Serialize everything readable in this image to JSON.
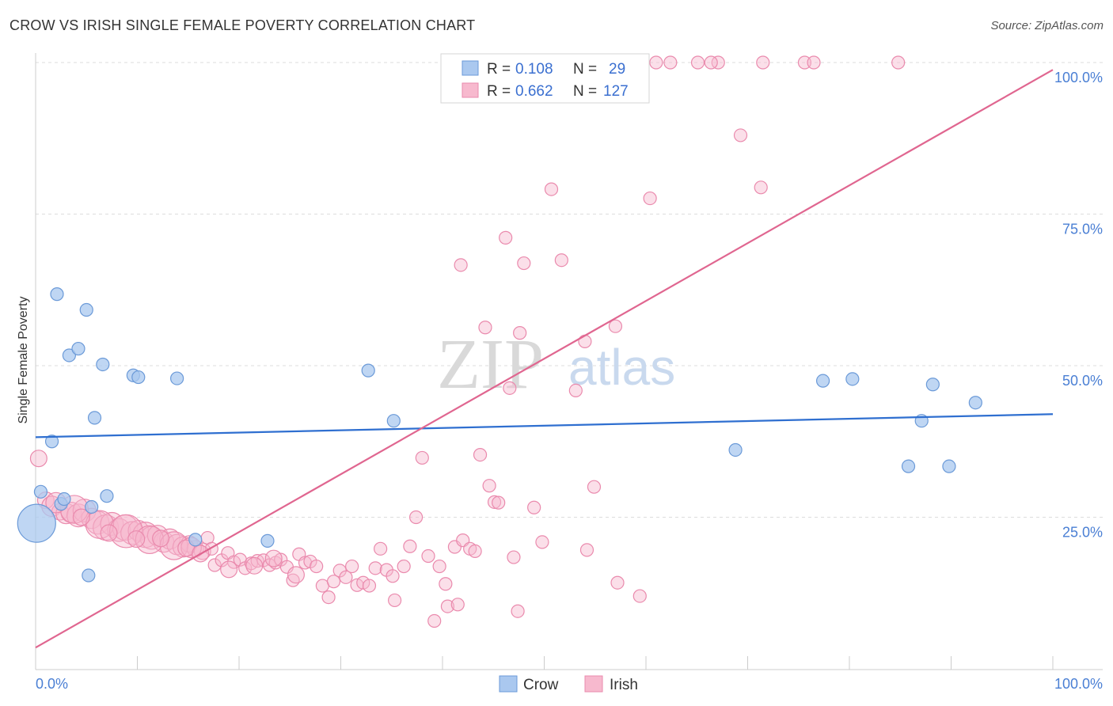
{
  "title": "CROW VS IRISH SINGLE FEMALE POVERTY CORRELATION CHART",
  "source": "Source: ZipAtlas.com",
  "watermark": {
    "zip": "ZIP",
    "atlas": "atlas"
  },
  "colors": {
    "crow_fill": "#aac8ef",
    "crow_stroke": "#6b9ad8",
    "crow_line": "#2f6fd0",
    "irish_fill": "#f7b9ce",
    "irish_stroke": "#ea8aad",
    "irish_line": "#e06690",
    "tick": "#4a7fd4",
    "grid": "#dddddd"
  },
  "chart_data": {
    "type": "scatter",
    "title": "CROW VS IRISH SINGLE FEMALE POVERTY CORRELATION CHART",
    "xlabel": "",
    "ylabel": "Single Female Poverty",
    "xlim": [
      0,
      100
    ],
    "ylim": [
      0,
      100
    ],
    "x_tick_labels": [
      "0.0%",
      "100.0%"
    ],
    "y_tick_labels": [
      "25.0%",
      "50.0%",
      "75.0%",
      "100.0%"
    ],
    "y_ticks": [
      25,
      50,
      75,
      100
    ],
    "grid": true,
    "legend_position": "top-center",
    "legend": [
      {
        "name": "Crow",
        "r_label": "R =",
        "r": "0.108",
        "n_label": "N =",
        "n": "29"
      },
      {
        "name": "Irish",
        "r_label": "R =",
        "r": "0.662",
        "n_label": "N =",
        "n": "127"
      }
    ],
    "series": [
      {
        "name": "Crow",
        "trend": {
          "x": [
            0,
            100
          ],
          "y": [
            38.2,
            42.0
          ]
        },
        "points": [
          [
            0.1,
            24.0,
            3
          ],
          [
            0.5,
            29.2,
            1
          ],
          [
            1.6,
            37.5,
            1
          ],
          [
            2.1,
            61.8,
            1
          ],
          [
            2.5,
            27.2,
            1
          ],
          [
            2.8,
            28.0,
            1
          ],
          [
            3.3,
            51.7,
            1
          ],
          [
            4.2,
            52.8,
            1
          ],
          [
            5.0,
            59.2,
            1
          ],
          [
            5.2,
            15.4,
            1
          ],
          [
            5.8,
            41.4,
            1
          ],
          [
            6.6,
            50.2,
            1
          ],
          [
            7.0,
            28.5,
            1
          ],
          [
            9.6,
            48.4,
            1
          ],
          [
            10.1,
            48.1,
            1
          ],
          [
            13.9,
            47.9,
            1
          ],
          [
            15.7,
            21.3,
            1
          ],
          [
            22.8,
            21.1,
            1
          ],
          [
            32.7,
            49.2,
            1
          ],
          [
            35.2,
            40.9,
            1
          ],
          [
            68.8,
            36.1,
            1
          ],
          [
            77.4,
            47.5,
            1
          ],
          [
            80.3,
            47.8,
            1
          ],
          [
            85.8,
            33.4,
            1
          ],
          [
            87.1,
            40.9,
            1
          ],
          [
            88.2,
            46.9,
            1
          ],
          [
            89.8,
            33.4,
            1
          ],
          [
            92.4,
            43.9,
            1
          ],
          [
            5.5,
            26.7,
            1
          ]
        ]
      },
      {
        "name": "Irish",
        "trend": {
          "x": [
            0,
            100
          ],
          "y": [
            3.5,
            98.8
          ]
        },
        "points": [
          [
            0.3,
            34.7,
            1.3
          ],
          [
            1.0,
            27.8,
            1.3
          ],
          [
            1.6,
            26.8,
            1.6
          ],
          [
            2.4,
            25.9,
            1.3
          ],
          [
            3.0,
            25.6,
            1.6
          ],
          [
            3.5,
            25.8,
            1.6
          ],
          [
            4.2,
            25.3,
            1.8
          ],
          [
            4.8,
            26.1,
            1.8
          ],
          [
            5.5,
            24.8,
            1.6
          ],
          [
            6.1,
            24.1,
            1.8
          ],
          [
            6.9,
            23.3,
            2
          ],
          [
            7.5,
            23.9,
            1.8
          ],
          [
            8.2,
            22.9,
            1.8
          ],
          [
            8.8,
            23.3,
            2
          ],
          [
            9.5,
            22.4,
            1.8
          ],
          [
            10.1,
            22.8,
            1.6
          ],
          [
            10.8,
            22.1,
            2
          ],
          [
            11.4,
            21.6,
            1.8
          ],
          [
            12.0,
            22.0,
            1.6
          ],
          [
            12.6,
            20.9,
            1.6
          ],
          [
            13.2,
            21.4,
            1.6
          ],
          [
            13.9,
            20.5,
            1.6
          ],
          [
            14.5,
            20.1,
            1.6
          ],
          [
            15.1,
            20.6,
            1.3
          ],
          [
            15.7,
            19.8,
            1.3
          ],
          [
            16.4,
            19.4,
            1.3
          ],
          [
            16.9,
            21.6,
            1
          ],
          [
            17.3,
            19.8,
            1
          ],
          [
            17.6,
            17.1,
            1
          ],
          [
            18.3,
            17.9,
            1
          ],
          [
            18.9,
            19.1,
            1
          ],
          [
            19.5,
            17.6,
            1
          ],
          [
            20.1,
            18.0,
            1
          ],
          [
            20.6,
            16.6,
            1
          ],
          [
            21.2,
            17.4,
            1
          ],
          [
            21.8,
            17.8,
            1
          ],
          [
            22.4,
            17.9,
            1
          ],
          [
            23.0,
            17.1,
            1
          ],
          [
            23.6,
            17.5,
            1
          ],
          [
            24.1,
            18.0,
            1
          ],
          [
            24.7,
            16.8,
            1
          ],
          [
            25.3,
            14.6,
            1
          ],
          [
            25.9,
            18.9,
            1
          ],
          [
            26.5,
            17.5,
            1
          ],
          [
            27.0,
            17.7,
            1
          ],
          [
            27.6,
            16.9,
            1
          ],
          [
            28.2,
            13.7,
            1
          ],
          [
            28.8,
            11.8,
            1
          ],
          [
            29.3,
            14.4,
            1
          ],
          [
            29.9,
            16.2,
            1
          ],
          [
            30.5,
            15.1,
            1
          ],
          [
            31.1,
            16.9,
            1
          ],
          [
            31.6,
            13.8,
            1
          ],
          [
            32.2,
            14.2,
            1
          ],
          [
            32.8,
            13.7,
            1
          ],
          [
            33.4,
            16.6,
            1
          ],
          [
            33.9,
            19.8,
            1
          ],
          [
            34.5,
            16.3,
            1
          ],
          [
            35.1,
            15.3,
            1
          ],
          [
            35.3,
            11.3,
            1
          ],
          [
            36.2,
            16.9,
            1
          ],
          [
            36.8,
            20.2,
            1
          ],
          [
            37.4,
            25.0,
            1
          ],
          [
            38.0,
            34.8,
            1
          ],
          [
            38.6,
            18.6,
            1
          ],
          [
            39.2,
            7.9,
            1
          ],
          [
            39.7,
            16.9,
            1
          ],
          [
            40.3,
            14.0,
            1
          ],
          [
            40.5,
            10.3,
            1
          ],
          [
            41.2,
            20.1,
            1
          ],
          [
            41.5,
            10.6,
            1
          ],
          [
            42.0,
            21.2,
            1
          ],
          [
            42.7,
            19.8,
            1
          ],
          [
            43.2,
            19.4,
            1
          ],
          [
            43.7,
            35.3,
            1
          ],
          [
            44.2,
            56.3,
            1
          ],
          [
            44.6,
            30.2,
            1
          ],
          [
            45.1,
            27.5,
            1
          ],
          [
            45.5,
            27.4,
            1
          ],
          [
            46.2,
            71.1,
            1
          ],
          [
            46.6,
            46.3,
            1
          ],
          [
            47.0,
            18.4,
            1
          ],
          [
            47.4,
            9.5,
            1
          ],
          [
            48.0,
            66.9,
            1
          ],
          [
            49.0,
            26.6,
            1
          ],
          [
            49.8,
            20.9,
            1
          ],
          [
            50.7,
            79.1,
            1
          ],
          [
            51.7,
            67.4,
            1
          ],
          [
            53.1,
            45.9,
            1
          ],
          [
            54.2,
            19.6,
            1
          ],
          [
            54.9,
            30.0,
            1
          ],
          [
            57.2,
            14.2,
            1
          ],
          [
            59.4,
            12.0,
            1
          ],
          [
            61.0,
            100.0,
            1
          ],
          [
            65.1,
            100.0,
            1
          ],
          [
            67.1,
            100.0,
            1
          ],
          [
            71.5,
            100.0,
            1
          ],
          [
            75.6,
            100.0,
            1
          ],
          [
            76.5,
            100.0,
            1
          ],
          [
            84.8,
            100.0,
            1
          ],
          [
            69.3,
            88.0,
            1
          ],
          [
            71.3,
            79.4,
            1
          ],
          [
            60.4,
            77.6,
            1
          ],
          [
            47.6,
            55.4,
            1
          ],
          [
            41.8,
            66.6,
            1
          ],
          [
            54.0,
            54.0,
            1
          ],
          [
            57.0,
            56.5,
            1
          ],
          [
            55.7,
            100.0,
            1
          ],
          [
            62.4,
            100.0,
            1
          ],
          [
            66.4,
            100.0,
            1
          ],
          [
            3.8,
            26.3,
            2.2
          ],
          [
            6.3,
            23.8,
            2.2
          ],
          [
            8.9,
            22.7,
            2.6
          ],
          [
            11.2,
            21.3,
            2.2
          ],
          [
            13.6,
            20.3,
            2.2
          ],
          [
            15.3,
            20.0,
            1.6
          ],
          [
            2.0,
            27.4,
            1.6
          ],
          [
            4.5,
            25.0,
            1.3
          ],
          [
            7.2,
            22.4,
            1.3
          ],
          [
            9.9,
            21.4,
            1.3
          ],
          [
            12.3,
            21.5,
            1.3
          ],
          [
            14.8,
            19.9,
            1.3
          ],
          [
            16.2,
            19.0,
            1.3
          ],
          [
            19.0,
            16.4,
            1.3
          ],
          [
            21.5,
            17.0,
            1.3
          ],
          [
            23.4,
            18.2,
            1.3
          ],
          [
            25.6,
            15.5,
            1.3
          ]
        ]
      }
    ]
  }
}
